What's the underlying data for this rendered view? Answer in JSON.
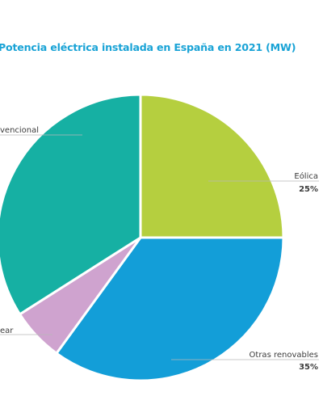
{
  "chart_data": {
    "type": "pie",
    "title": "Potencia eléctrica instalada en España en 2021 (MW)",
    "slices": [
      {
        "label": "Eólica",
        "pct_label": "25%",
        "value": 25,
        "color": "#b5cf3f"
      },
      {
        "label": "Otras renovables",
        "pct_label": "35%",
        "value": 35,
        "color": "#139ed8"
      },
      {
        "label": "ear",
        "pct_label": "",
        "value": 6,
        "color": "#cfa3cf"
      },
      {
        "label": "vencional",
        "pct_label": "",
        "value": 34,
        "color": "#16b0a3"
      }
    ],
    "legend": "none"
  }
}
